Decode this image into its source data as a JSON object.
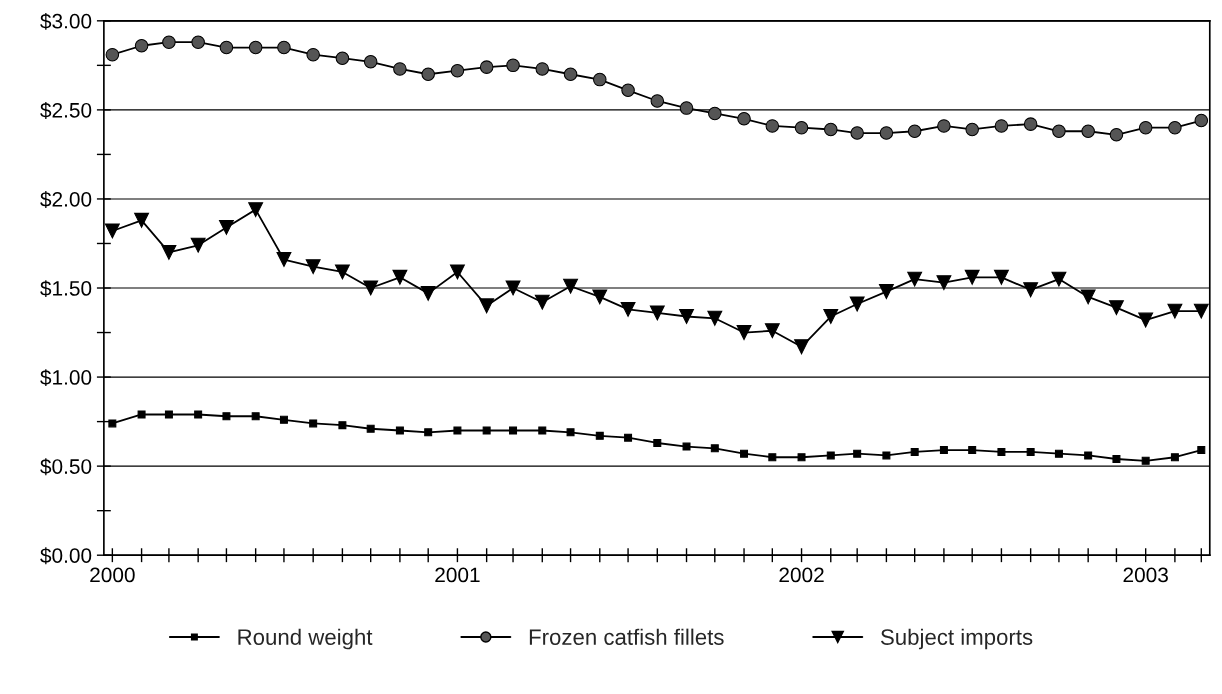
{
  "chart_data": {
    "type": "line",
    "x": [
      "2000-01",
      "2000-02",
      "2000-03",
      "2000-04",
      "2000-05",
      "2000-06",
      "2000-07",
      "2000-08",
      "2000-09",
      "2000-10",
      "2000-11",
      "2000-12",
      "2001-01",
      "2001-02",
      "2001-03",
      "2001-04",
      "2001-05",
      "2001-06",
      "2001-07",
      "2001-08",
      "2001-09",
      "2001-10",
      "2001-11",
      "2001-12",
      "2002-01",
      "2002-02",
      "2002-03",
      "2002-04",
      "2002-05",
      "2002-06",
      "2002-07",
      "2002-08",
      "2002-09",
      "2002-10",
      "2002-11",
      "2002-12",
      "2003-01",
      "2003-02",
      "2003-03"
    ],
    "series": [
      {
        "name": "Round weight",
        "color": "#000000",
        "marker": "square",
        "values": [
          0.74,
          0.79,
          0.79,
          0.79,
          0.78,
          0.78,
          0.76,
          0.74,
          0.73,
          0.71,
          0.7,
          0.69,
          0.7,
          0.7,
          0.7,
          0.7,
          0.69,
          0.67,
          0.66,
          0.63,
          0.61,
          0.6,
          0.57,
          0.55,
          0.55,
          0.56,
          0.57,
          0.56,
          0.58,
          0.59,
          0.59,
          0.58,
          0.58,
          0.57,
          0.56,
          0.54,
          0.53,
          0.55,
          0.59
        ]
      },
      {
        "name": "Frozen catfish fillets",
        "color": "#555555",
        "marker": "circle",
        "values": [
          2.81,
          2.86,
          2.88,
          2.88,
          2.85,
          2.85,
          2.85,
          2.81,
          2.79,
          2.77,
          2.73,
          2.7,
          2.72,
          2.74,
          2.75,
          2.73,
          2.7,
          2.67,
          2.61,
          2.55,
          2.51,
          2.48,
          2.45,
          2.41,
          2.4,
          2.39,
          2.37,
          2.37,
          2.38,
          2.41,
          2.39,
          2.41,
          2.42,
          2.38,
          2.38,
          2.36,
          2.4,
          2.4,
          2.44
        ]
      },
      {
        "name": "Subject imports",
        "color": "#000000",
        "marker": "triangle",
        "values": [
          1.82,
          1.88,
          1.7,
          1.74,
          1.84,
          1.94,
          1.66,
          1.62,
          1.59,
          1.5,
          1.56,
          1.47,
          1.59,
          1.4,
          1.5,
          1.42,
          1.51,
          1.45,
          1.38,
          1.36,
          1.34,
          1.33,
          1.25,
          1.26,
          1.17,
          1.34,
          1.41,
          1.48,
          1.55,
          1.53,
          1.56,
          1.56,
          1.49,
          1.55,
          1.45,
          1.39,
          1.32,
          1.37,
          1.37
        ]
      }
    ],
    "xlim": [
      "1999-12-23",
      "2003-03-10"
    ],
    "xticks": [
      {
        "value": "2000-01",
        "label": "2000"
      },
      {
        "value": "2000-02",
        "label": null
      },
      {
        "value": "2000-03",
        "label": null
      },
      {
        "value": "2000-04",
        "label": null
      },
      {
        "value": "2000-05",
        "label": null
      },
      {
        "value": "2000-06",
        "label": null
      },
      {
        "value": "2000-07",
        "label": null
      },
      {
        "value": "2000-08",
        "label": null
      },
      {
        "value": "2000-09",
        "label": null
      },
      {
        "value": "2000-10",
        "label": null
      },
      {
        "value": "2000-11",
        "label": null
      },
      {
        "value": "2000-12",
        "label": null
      },
      {
        "value": "2001-01",
        "label": "2001"
      },
      {
        "value": "2001-02",
        "label": null
      },
      {
        "value": "2001-03",
        "label": null
      },
      {
        "value": "2001-04",
        "label": null
      },
      {
        "value": "2001-05",
        "label": null
      },
      {
        "value": "2001-06",
        "label": null
      },
      {
        "value": "2001-07",
        "label": null
      },
      {
        "value": "2001-08",
        "label": null
      },
      {
        "value": "2001-09",
        "label": null
      },
      {
        "value": "2001-10",
        "label": null
      },
      {
        "value": "2001-11",
        "label": null
      },
      {
        "value": "2001-12",
        "label": null
      },
      {
        "value": "2002-01",
        "label": "2002"
      },
      {
        "value": "2002-02",
        "label": null
      },
      {
        "value": "2002-03",
        "label": null
      },
      {
        "value": "2002-04",
        "label": null
      },
      {
        "value": "2002-05",
        "label": null
      },
      {
        "value": "2002-06",
        "label": null
      },
      {
        "value": "2002-07",
        "label": null
      },
      {
        "value": "2002-08",
        "label": null
      },
      {
        "value": "2002-09",
        "label": null
      },
      {
        "value": "2002-10",
        "label": null
      },
      {
        "value": "2002-11",
        "label": null
      },
      {
        "value": "2002-12",
        "label": null
      },
      {
        "value": "2003-01",
        "label": "2003"
      },
      {
        "value": "2003-02",
        "label": null
      },
      {
        "value": "2003-03",
        "label": null
      }
    ],
    "ylim": [
      0,
      3
    ],
    "yticks": [
      {
        "value": 0,
        "label": "$0.00"
      },
      {
        "value": 0.25,
        "label": null
      },
      {
        "value": 0.5,
        "label": "$0.50"
      },
      {
        "value": 0.75,
        "label": null
      },
      {
        "value": 1,
        "label": "$1.00"
      },
      {
        "value": 1.25,
        "label": null
      },
      {
        "value": 1.5,
        "label": "$1.50"
      },
      {
        "value": 1.75,
        "label": null
      },
      {
        "value": 2,
        "label": "$2.00"
      },
      {
        "value": 2.25,
        "label": null
      },
      {
        "value": 2.5,
        "label": "$2.50"
      },
      {
        "value": 2.75,
        "label": null
      },
      {
        "value": 3,
        "label": "$3.00"
      }
    ],
    "grid": "y",
    "legend": "bottom",
    "line_style": "solid"
  }
}
